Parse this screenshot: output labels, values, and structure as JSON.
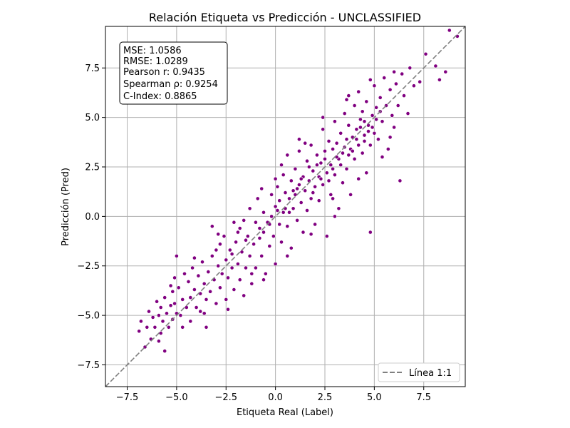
{
  "chart_data": {
    "type": "scatter",
    "title": "Relación Etiqueta vs Predicción - UNCLASSIFIED",
    "xlabel": "Etiqueta Real (Label)",
    "ylabel": "Predicción (Pred)",
    "xlim": [
      -8.6,
      9.6
    ],
    "ylim": [
      -8.6,
      9.6
    ],
    "xticks": [
      -7.5,
      -5.0,
      -2.5,
      0.0,
      2.5,
      5.0,
      7.5
    ],
    "yticks": [
      -7.5,
      -5.0,
      -2.5,
      0.0,
      2.5,
      5.0,
      7.5
    ],
    "xtick_labels": [
      "−7.5",
      "−5.0",
      "−2.5",
      "0.0",
      "2.5",
      "5.0",
      "7.5"
    ],
    "ytick_labels": [
      "−7.5",
      "−5.0",
      "−2.5",
      "0.0",
      "2.5",
      "5.0",
      "7.5"
    ],
    "grid": true,
    "point_color": "#800080",
    "reference_line": {
      "label": "Línea 1:1",
      "color": "#808080",
      "style": "dashed",
      "slope": 1,
      "intercept": 0
    },
    "legend": {
      "placement": "lower-right",
      "entries": [
        "Línea 1:1"
      ]
    },
    "stats_box": {
      "placement": "upper-left",
      "lines": [
        "MSE: 1.0586",
        "RMSE: 1.0289",
        "Pearson r: 0.9435",
        "Spearman ρ: 0.9254",
        "C-Index: 0.8865"
      ]
    },
    "series": [
      {
        "points": [
          [
            -6.9,
            -5.8
          ],
          [
            -6.8,
            -5.3
          ],
          [
            -6.6,
            -6.6
          ],
          [
            -6.5,
            -5.6
          ],
          [
            -6.3,
            -6.2
          ],
          [
            -6.2,
            -5.1
          ],
          [
            -6.1,
            -5.6
          ],
          [
            -6.0,
            -4.3
          ],
          [
            -5.9,
            -5.0
          ],
          [
            -5.8,
            -5.9
          ],
          [
            -5.8,
            -4.6
          ],
          [
            -5.7,
            -5.3
          ],
          [
            -5.6,
            -6.8
          ],
          [
            -5.6,
            -4.1
          ],
          [
            -5.5,
            -4.9
          ],
          [
            -5.4,
            -5.6
          ],
          [
            -5.3,
            -4.5
          ],
          [
            -5.2,
            -3.8
          ],
          [
            -5.2,
            -5.2
          ],
          [
            -5.1,
            -4.4
          ],
          [
            -5.0,
            -4.9
          ],
          [
            -5.0,
            -2.0
          ],
          [
            -4.9,
            -3.6
          ],
          [
            -4.8,
            -5.0
          ],
          [
            -4.7,
            -4.2
          ],
          [
            -4.6,
            -2.9
          ],
          [
            -4.5,
            -4.6
          ],
          [
            -4.4,
            -3.3
          ],
          [
            -4.3,
            -4.1
          ],
          [
            -4.3,
            -5.3
          ],
          [
            -4.2,
            -2.6
          ],
          [
            -4.1,
            -3.7
          ],
          [
            -4.0,
            -4.6
          ],
          [
            -3.9,
            -3.0
          ],
          [
            -3.8,
            -3.9
          ],
          [
            -3.8,
            -4.8
          ],
          [
            -3.7,
            -2.3
          ],
          [
            -3.6,
            -3.4
          ],
          [
            -3.5,
            -4.2
          ],
          [
            -3.5,
            -5.6
          ],
          [
            -3.4,
            -2.8
          ],
          [
            -3.3,
            -3.8
          ],
          [
            -3.2,
            -0.5
          ],
          [
            -3.2,
            -2.0
          ],
          [
            -3.1,
            -3.2
          ],
          [
            -3.0,
            -4.4
          ],
          [
            -2.9,
            -2.5
          ],
          [
            -2.8,
            -1.4
          ],
          [
            -2.8,
            -3.6
          ],
          [
            -2.7,
            -2.9
          ],
          [
            -2.6,
            -1.0
          ],
          [
            -2.5,
            -2.2
          ],
          [
            -2.5,
            -4.2
          ],
          [
            -2.4,
            -3.1
          ],
          [
            -2.3,
            -1.7
          ],
          [
            -2.2,
            -2.6
          ],
          [
            -2.1,
            -0.3
          ],
          [
            -2.1,
            -3.7
          ],
          [
            -2.0,
            -1.3
          ],
          [
            -1.9,
            -2.4
          ],
          [
            -1.9,
            -0.8
          ],
          [
            -1.8,
            -3.2
          ],
          [
            -1.7,
            -1.8
          ],
          [
            -1.6,
            -0.2
          ],
          [
            -1.6,
            -4.0
          ],
          [
            -1.5,
            -2.6
          ],
          [
            -1.4,
            -1.0
          ],
          [
            -1.3,
            0.4
          ],
          [
            -1.3,
            -2.0
          ],
          [
            -1.2,
            -3.4
          ],
          [
            -1.1,
            -1.4
          ],
          [
            -1.0,
            -0.3
          ],
          [
            -1.0,
            -2.6
          ],
          [
            -0.9,
            0.9
          ],
          [
            -0.8,
            -1.1
          ],
          [
            -0.7,
            -2.0
          ],
          [
            -0.6,
            0.2
          ],
          [
            -0.6,
            -0.8
          ],
          [
            -0.5,
            -2.9
          ],
          [
            -0.4,
            -0.3
          ],
          [
            -0.3,
            -1.5
          ],
          [
            -0.2,
            1.1
          ],
          [
            -0.2,
            0.0
          ],
          [
            -0.1,
            -1.0
          ],
          [
            0.0,
            0.5
          ],
          [
            0.0,
            -2.4
          ],
          [
            0.1,
            1.5
          ],
          [
            0.2,
            -0.4
          ],
          [
            0.2,
            0.8
          ],
          [
            0.3,
            -1.3
          ],
          [
            0.4,
            2.1
          ],
          [
            0.4,
            0.2
          ],
          [
            0.5,
            1.2
          ],
          [
            0.6,
            -0.5
          ],
          [
            0.6,
            3.1
          ],
          [
            0.7,
            0.9
          ],
          [
            0.8,
            1.8
          ],
          [
            0.8,
            -1.6
          ],
          [
            0.9,
            0.4
          ],
          [
            1.0,
            2.4
          ],
          [
            1.0,
            1.1
          ],
          [
            1.1,
            -0.2
          ],
          [
            1.2,
            3.3
          ],
          [
            1.2,
            1.6
          ],
          [
            1.3,
            0.7
          ],
          [
            1.4,
            2.0
          ],
          [
            1.4,
            -0.8
          ],
          [
            1.5,
            1.3
          ],
          [
            1.6,
            2.8
          ],
          [
            1.6,
            0.3
          ],
          [
            1.7,
            1.8
          ],
          [
            1.8,
            3.6
          ],
          [
            1.8,
            0.9
          ],
          [
            1.9,
            2.3
          ],
          [
            2.0,
            1.5
          ],
          [
            2.0,
            -0.4
          ],
          [
            2.1,
            3.1
          ],
          [
            2.2,
            2.0
          ],
          [
            2.2,
            0.8
          ],
          [
            2.3,
            2.7
          ],
          [
            2.4,
            4.4
          ],
          [
            2.4,
            1.6
          ],
          [
            2.5,
            3.3
          ],
          [
            2.6,
            2.2
          ],
          [
            2.6,
            -1.0
          ],
          [
            2.7,
            3.8
          ],
          [
            2.8,
            2.6
          ],
          [
            2.8,
            1.1
          ],
          [
            2.9,
            3.4
          ],
          [
            3.0,
            4.8
          ],
          [
            3.0,
            2.1
          ],
          [
            3.1,
            3.7
          ],
          [
            3.2,
            2.9
          ],
          [
            3.2,
            0.4
          ],
          [
            3.3,
            4.2
          ],
          [
            3.4,
            3.2
          ],
          [
            3.4,
            1.7
          ],
          [
            3.5,
            5.2
          ],
          [
            3.6,
            3.9
          ],
          [
            3.6,
            2.4
          ],
          [
            3.7,
            4.6
          ],
          [
            3.8,
            3.4
          ],
          [
            3.8,
            1.1
          ],
          [
            3.9,
            4.0
          ],
          [
            4.0,
            5.6
          ],
          [
            4.0,
            2.9
          ],
          [
            4.1,
            4.4
          ],
          [
            4.2,
            3.6
          ],
          [
            4.2,
            6.3
          ],
          [
            4.3,
            4.9
          ],
          [
            4.4,
            3.2
          ],
          [
            4.4,
            5.3
          ],
          [
            4.5,
            4.1
          ],
          [
            4.6,
            2.2
          ],
          [
            4.6,
            5.8
          ],
          [
            4.7,
            4.6
          ],
          [
            4.8,
            3.6
          ],
          [
            4.8,
            -0.8
          ],
          [
            4.9,
            5.1
          ],
          [
            5.0,
            4.2
          ],
          [
            5.0,
            6.6
          ],
          [
            5.1,
            5.5
          ],
          [
            5.2,
            3.9
          ],
          [
            5.3,
            6.0
          ],
          [
            5.4,
            4.8
          ],
          [
            5.5,
            7.0
          ],
          [
            5.6,
            5.6
          ],
          [
            5.7,
            3.4
          ],
          [
            5.8,
            6.4
          ],
          [
            5.9,
            5.1
          ],
          [
            6.0,
            4.5
          ],
          [
            6.1,
            6.7
          ],
          [
            6.2,
            5.6
          ],
          [
            6.3,
            1.8
          ],
          [
            6.4,
            7.2
          ],
          [
            6.5,
            6.1
          ],
          [
            6.7,
            5.2
          ],
          [
            6.8,
            7.5
          ],
          [
            7.0,
            6.6
          ],
          [
            7.3,
            6.8
          ],
          [
            7.6,
            8.2
          ],
          [
            8.1,
            7.6
          ],
          [
            8.3,
            6.9
          ],
          [
            8.6,
            7.3
          ],
          [
            8.8,
            9.4
          ],
          [
            9.2,
            9.1
          ],
          [
            -6.4,
            -4.8
          ],
          [
            -5.9,
            -6.3
          ],
          [
            -5.3,
            -3.5
          ],
          [
            -4.7,
            -5.6
          ],
          [
            -4.1,
            -2.1
          ],
          [
            -3.6,
            -4.9
          ],
          [
            -3.0,
            -1.7
          ],
          [
            -2.4,
            -4.7
          ],
          [
            -1.8,
            -0.6
          ],
          [
            -1.2,
            -2.9
          ],
          [
            -0.6,
            -3.2
          ],
          [
            0.0,
            1.9
          ],
          [
            0.6,
            -2.0
          ],
          [
            1.2,
            3.9
          ],
          [
            1.8,
            -0.9
          ],
          [
            2.4,
            5.0
          ],
          [
            3.0,
            0.0
          ],
          [
            3.6,
            5.9
          ],
          [
            4.2,
            1.9
          ],
          [
            4.8,
            6.9
          ],
          [
            5.4,
            3.0
          ],
          [
            6.0,
            7.3
          ],
          [
            -5.1,
            -3.1
          ],
          [
            -2.9,
            -0.9
          ],
          [
            -0.7,
            1.4
          ],
          [
            1.5,
            3.7
          ],
          [
            3.7,
            6.1
          ],
          [
            5.8,
            4.0
          ],
          [
            0.3,
            2.6
          ],
          [
            2.9,
            0.9
          ],
          [
            1.1,
            1.4
          ],
          [
            1.3,
            1.9
          ],
          [
            1.7,
            2.5
          ],
          [
            2.1,
            2.6
          ],
          [
            2.5,
            2.9
          ],
          [
            2.7,
            1.8
          ],
          [
            3.1,
            3.0
          ],
          [
            3.3,
            2.6
          ],
          [
            3.5,
            3.5
          ],
          [
            3.9,
            3.3
          ],
          [
            4.1,
            3.9
          ],
          [
            4.3,
            4.5
          ],
          [
            4.5,
            4.8
          ],
          [
            4.7,
            4.3
          ],
          [
            4.9,
            4.5
          ],
          [
            5.1,
            4.9
          ],
          [
            5.3,
            5.3
          ],
          [
            0.5,
            0.4
          ],
          [
            0.7,
            0.2
          ],
          [
            0.9,
            1.3
          ],
          [
            1.9,
            1.2
          ],
          [
            2.3,
            1.9
          ],
          [
            2.9,
            2.4
          ],
          [
            3.7,
            3.1
          ],
          [
            4.5,
            3.8
          ],
          [
            0.1,
            0.3
          ],
          [
            -0.3,
            -0.4
          ],
          [
            -0.8,
            -0.6
          ],
          [
            -1.5,
            -1.2
          ],
          [
            -2.2,
            -1.9
          ]
        ]
      }
    ]
  }
}
